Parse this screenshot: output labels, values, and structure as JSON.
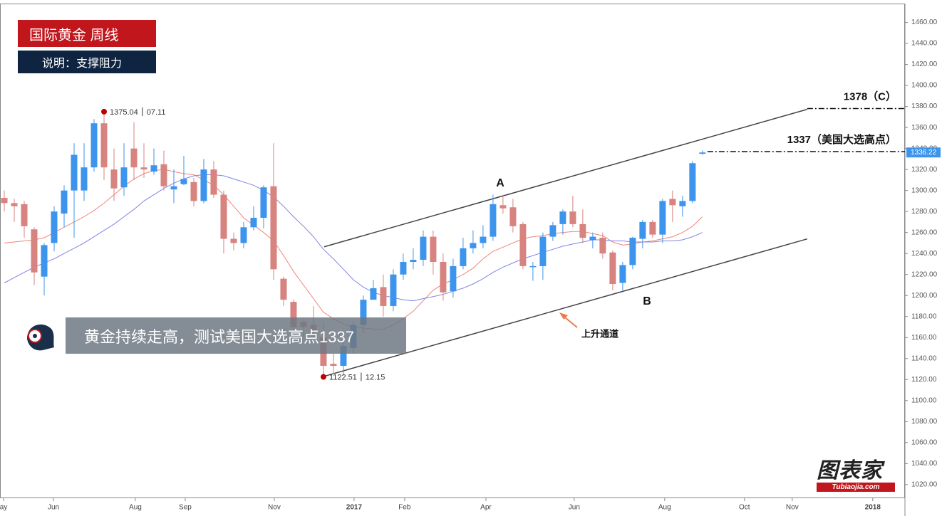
{
  "header": {
    "title": "国际黄金  周线",
    "subtitle": "说明：支撑阻力"
  },
  "callout": "黄金持续走高，测试美国大选高点1337",
  "logo": {
    "name": "图表家",
    "url": "Tubiaojia.com"
  },
  "chart_data": {
    "type": "candlestick",
    "open": [
      1293,
      1288,
      1287,
      1263,
      1218,
      1250,
      1278,
      1300,
      1300,
      1322,
      1364,
      1320,
      1303,
      1340,
      1322,
      1318,
      1325,
      1301,
      1306,
      1308,
      1290,
      1320,
      1296,
      1254,
      1250,
      1265,
      1274,
      1304,
      1216,
      1194,
      1175,
      1172,
      1160,
      1135,
      1133,
      1150,
      1172,
      1196,
      1208,
      1190,
      1220,
      1232,
      1234,
      1256,
      1232,
      1204,
      1228,
      1245,
      1250,
      1256,
      1286,
      1284,
      1268,
      1228,
      1228,
      1256,
      1268,
      1280,
      1268,
      1253,
      1255,
      1241,
      1212,
      1229,
      1254,
      1270,
      1258,
      1292,
      1285,
      1290,
      1335
    ],
    "high": [
      1300,
      1292,
      1290,
      1265,
      1250,
      1285,
      1305,
      1345,
      1345,
      1368,
      1375.04,
      1340,
      1345,
      1365,
      1345,
      1340,
      1338,
      1320,
      1333,
      1312,
      1330,
      1328,
      1300,
      1260,
      1270,
      1285,
      1305,
      1345,
      1218,
      1196,
      1178,
      1190,
      1175,
      1145,
      1160,
      1175,
      1200,
      1215,
      1220,
      1225,
      1240,
      1245,
      1262,
      1262,
      1240,
      1235,
      1255,
      1262,
      1267,
      1296,
      1296,
      1292,
      1270,
      1232,
      1260,
      1270,
      1282,
      1295,
      1282,
      1260,
      1260,
      1243,
      1232,
      1256,
      1272,
      1272,
      1292,
      1300,
      1295,
      1328,
      1338
    ],
    "low": [
      1280,
      1270,
      1255,
      1210,
      1200,
      1242,
      1265,
      1255,
      1290,
      1318,
      1310,
      1290,
      1295,
      1310,
      1312,
      1315,
      1300,
      1288,
      1305,
      1285,
      1288,
      1293,
      1240,
      1243,
      1245,
      1262,
      1264,
      1215,
      1190,
      1165,
      1160,
      1160,
      1122.51,
      1125,
      1124,
      1145,
      1164,
      1196,
      1180,
      1185,
      1215,
      1225,
      1228,
      1220,
      1195,
      1198,
      1225,
      1240,
      1245,
      1252,
      1278,
      1260,
      1225,
      1214,
      1215,
      1252,
      1258,
      1265,
      1250,
      1245,
      1235,
      1205,
      1205,
      1225,
      1245,
      1255,
      1250,
      1270,
      1275,
      1288,
      1334
    ],
    "close": [
      1288,
      1285,
      1266,
      1222,
      1248,
      1280,
      1300,
      1334,
      1322,
      1364,
      1322,
      1302,
      1322,
      1322,
      1320,
      1324,
      1304,
      1304,
      1311,
      1290,
      1320,
      1296,
      1254,
      1250,
      1265,
      1274,
      1303,
      1225,
      1196,
      1170,
      1170,
      1165,
      1133,
      1133,
      1152,
      1172,
      1196,
      1207,
      1190,
      1220,
      1232,
      1234,
      1256,
      1232,
      1203,
      1228,
      1245,
      1250,
      1256,
      1287,
      1283,
      1266,
      1228,
      1228,
      1256,
      1267,
      1280,
      1268,
      1255,
      1256,
      1240,
      1211,
      1229,
      1255,
      1270,
      1258,
      1290,
      1286,
      1290,
      1326,
      1336.22
    ],
    "up_color": "#3d94ec",
    "down_color": "#d7837f",
    "moving_averages": [
      {
        "color": "#f0857a",
        "values": [
          1250,
          1251,
          1252,
          1253,
          1255,
          1260,
          1265,
          1270,
          1275,
          1281,
          1288,
          1296,
          1304,
          1311,
          1316,
          1319,
          1320,
          1318,
          1316,
          1315,
          1310,
          1305,
          1296,
          1285,
          1274,
          1267,
          1260,
          1252,
          1238,
          1223,
          1210,
          1197,
          1184,
          1178,
          1173,
          1170,
          1169,
          1168,
          1168,
          1172,
          1178,
          1185,
          1195,
          1205,
          1211,
          1215,
          1220,
          1226,
          1235,
          1242,
          1246,
          1250,
          1254,
          1256,
          1257,
          1259,
          1260,
          1261,
          1261,
          1259,
          1257,
          1251,
          1248,
          1249,
          1251,
          1252,
          1254,
          1256,
          1260,
          1266,
          1275
        ]
      },
      {
        "color": "#7f83e6",
        "values": [
          1212,
          1217,
          1222,
          1227,
          1231,
          1235,
          1240,
          1245,
          1250,
          1256,
          1262,
          1268,
          1275,
          1282,
          1290,
          1296,
          1302,
          1307,
          1311,
          1314,
          1315,
          1315,
          1314,
          1311,
          1308,
          1305,
          1300,
          1294,
          1285,
          1275,
          1266,
          1256,
          1244,
          1235,
          1225,
          1215,
          1208,
          1203,
          1200,
          1198,
          1196,
          1195,
          1197,
          1199,
          1201,
          1204,
          1207,
          1211,
          1216,
          1222,
          1227,
          1231,
          1235,
          1238,
          1241,
          1244,
          1247,
          1249,
          1251,
          1253,
          1253,
          1252,
          1252,
          1251,
          1251,
          1251,
          1252,
          1252,
          1253,
          1256,
          1260
        ]
      }
    ],
    "xlim": [
      -0.43,
      90.3
    ],
    "xticks": [
      {
        "value": -0.07,
        "label": "ay"
      },
      {
        "value": 4.93,
        "label": "Jun"
      },
      {
        "value": 13.14,
        "label": "Aug"
      },
      {
        "value": 18.14,
        "label": "Sep"
      },
      {
        "value": 27.07,
        "label": "Nov"
      },
      {
        "value": 35.07,
        "label": "2017"
      },
      {
        "value": 40.14,
        "label": "Feb"
      },
      {
        "value": 48.29,
        "label": "Apr"
      },
      {
        "value": 57.14,
        "label": "Jun"
      },
      {
        "value": 66.21,
        "label": "Aug"
      },
      {
        "value": 74.21,
        "label": "Oct"
      },
      {
        "value": 79.0,
        "label": "Nov"
      },
      {
        "value": 87.07,
        "label": "2018"
      }
    ],
    "ylim": [
      1007,
      1478
    ],
    "yticks": [
      {
        "value": 1020,
        "label": "1020.00"
      },
      {
        "value": 1040,
        "label": "1040.00"
      },
      {
        "value": 1060,
        "label": "1060.00"
      },
      {
        "value": 1080,
        "label": "1080.00"
      },
      {
        "value": 1100,
        "label": "1100.00"
      },
      {
        "value": 1120,
        "label": "1120.00"
      },
      {
        "value": 1140,
        "label": "1140.00"
      },
      {
        "value": 1160,
        "label": "1160.00"
      },
      {
        "value": 1180,
        "label": "1180.00"
      },
      {
        "value": 1200,
        "label": "1200.00"
      },
      {
        "value": 1220,
        "label": "1220.00"
      },
      {
        "value": 1240,
        "label": "1240.00"
      },
      {
        "value": 1260,
        "label": "1260.00"
      },
      {
        "value": 1280,
        "label": "1280.00"
      },
      {
        "value": 1300,
        "label": "1300.00"
      },
      {
        "value": 1320,
        "label": "1320.00"
      },
      {
        "value": 1340,
        "label": "1340.00"
      },
      {
        "value": 1360,
        "label": "1360.00"
      },
      {
        "value": 1380,
        "label": "1380.00"
      },
      {
        "value": 1400,
        "label": "1400.00"
      },
      {
        "value": 1420,
        "label": "1420.00"
      },
      {
        "value": 1440,
        "label": "1440.00"
      },
      {
        "value": 1460,
        "label": "1460.00"
      }
    ],
    "last_price": 1336.22,
    "extremes": [
      {
        "value": 1375.04,
        "date": "07.11"
      },
      {
        "value": 1122.51,
        "date": "12.15"
      }
    ],
    "levels": [
      {
        "value": 1378,
        "label": "1378（C）"
      },
      {
        "value": 1337,
        "label": "1337（美国大选高点）"
      }
    ],
    "channel": {
      "label": "上升通道",
      "upper": [
        [
          32.07,
          1246.4
        ],
        [
          80.5,
          1377.3
        ]
      ],
      "lower": [
        [
          32.07,
          1123.1
        ],
        [
          80.5,
          1253.9
        ]
      ]
    },
    "points": [
      {
        "label": "A"
      },
      {
        "label": "B"
      }
    ]
  }
}
